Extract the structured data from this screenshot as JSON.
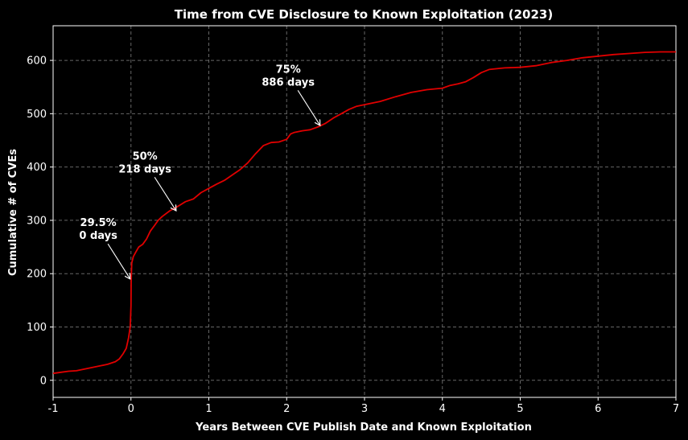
{
  "chart_data": {
    "type": "line",
    "title": "Time from CVE Disclosure to Known Exploitation (2023)",
    "xlabel": "Years Between CVE Publish Date and Known Exploitation",
    "ylabel": "Cumulative # of CVEs",
    "xlim": [
      -1,
      7
    ],
    "ylim": [
      -32,
      665
    ],
    "xticks": [
      -1,
      0,
      1,
      2,
      3,
      4,
      5,
      6,
      7
    ],
    "xtick_labels": [
      "-1",
      "0",
      "1",
      "2",
      "3",
      "4",
      "5",
      "6",
      "7"
    ],
    "yticks": [
      0,
      100,
      200,
      300,
      400,
      500,
      600
    ],
    "ytick_labels": [
      "0",
      "100",
      "200",
      "300",
      "400",
      "500",
      "600"
    ],
    "grid": true,
    "line_color": "#e00000",
    "background_color": "#000000",
    "text_color": "#ffffff",
    "grid_color": "#666666",
    "series": [
      {
        "x": [
          -1.0,
          -0.9,
          -0.8,
          -0.7,
          -0.6,
          -0.5,
          -0.4,
          -0.3,
          -0.2,
          -0.15,
          -0.1,
          -0.06,
          -0.03,
          -0.01,
          0.0,
          0.003,
          0.01,
          0.03,
          0.06,
          0.1,
          0.15,
          0.2,
          0.25,
          0.3,
          0.35,
          0.4,
          0.5,
          0.6,
          0.7,
          0.8,
          0.9,
          1.0,
          1.1,
          1.2,
          1.3,
          1.4,
          1.5,
          1.6,
          1.7,
          1.8,
          1.9,
          2.0,
          2.05,
          2.1,
          2.2,
          2.3,
          2.4,
          2.5,
          2.6,
          2.7,
          2.8,
          2.9,
          3.0,
          3.2,
          3.4,
          3.6,
          3.8,
          4.0,
          4.1,
          4.2,
          4.3,
          4.4,
          4.5,
          4.6,
          4.8,
          5.0,
          5.2,
          5.4,
          5.6,
          5.8,
          6.0,
          6.2,
          6.4,
          6.6,
          6.8,
          7.0
        ],
        "y": [
          13,
          15,
          17,
          18,
          21,
          24,
          27,
          30,
          35,
          40,
          50,
          60,
          80,
          100,
          140,
          185,
          220,
          232,
          240,
          250,
          255,
          265,
          280,
          290,
          300,
          307,
          318,
          326,
          335,
          340,
          352,
          360,
          368,
          375,
          385,
          395,
          408,
          425,
          440,
          446,
          447,
          452,
          462,
          465,
          468,
          470,
          475,
          482,
          492,
          500,
          508,
          514,
          517,
          523,
          532,
          540,
          545,
          548,
          553,
          556,
          560,
          568,
          577,
          583,
          586,
          587,
          590,
          596,
          600,
          605,
          608,
          611,
          613,
          615,
          616,
          616
        ]
      }
    ],
    "annotations": [
      {
        "line1": "29.5%",
        "line2": "0 days",
        "text_x": -0.42,
        "text_y": 280,
        "point_x": -0.01,
        "point_y": 190
      },
      {
        "line1": "50%",
        "line2": "218 days",
        "text_x": 0.18,
        "text_y": 405,
        "point_x": 0.58,
        "point_y": 318
      },
      {
        "line1": "75%",
        "line2": "886 days",
        "text_x": 2.02,
        "text_y": 568,
        "point_x": 2.43,
        "point_y": 478
      }
    ]
  }
}
